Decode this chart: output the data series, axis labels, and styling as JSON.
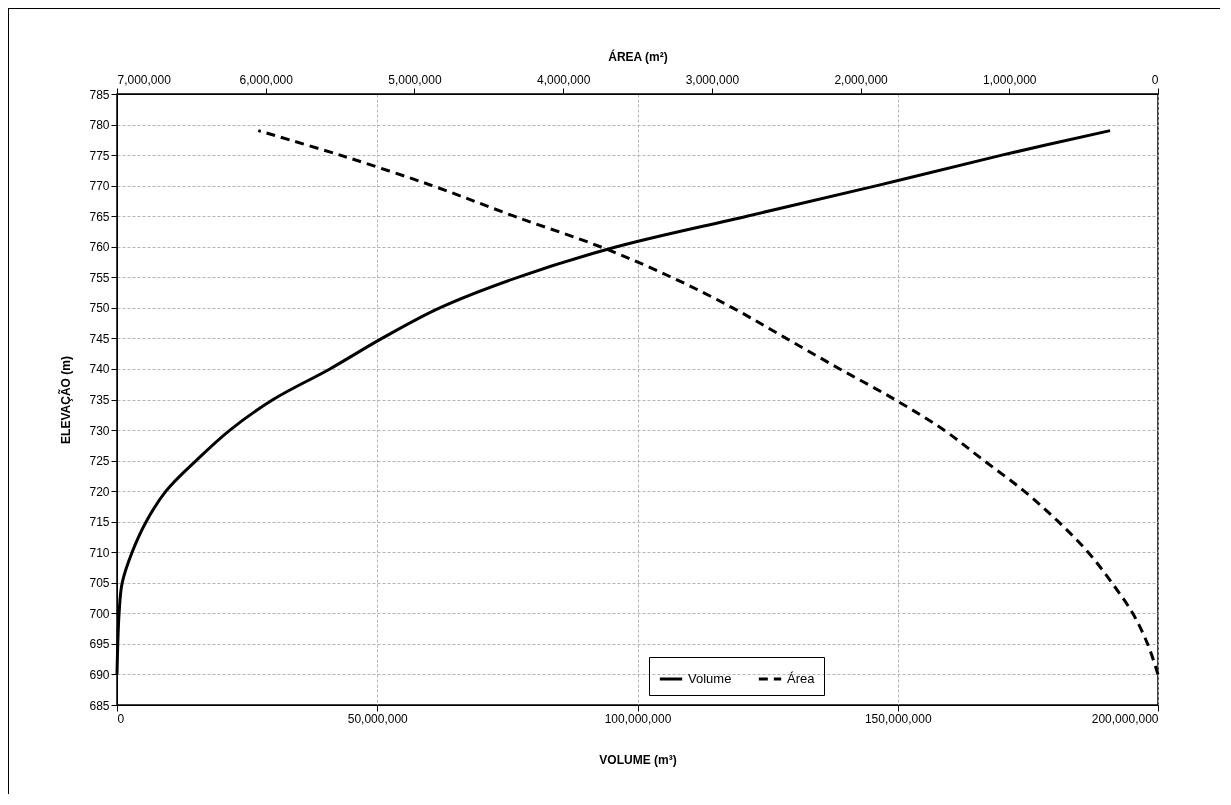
{
  "chart_data": {
    "type": "line",
    "xlabel": "VOLUME (m³)",
    "x2label": "ÁREA (m²)",
    "ylabel": "ELEVAÇÃO (m)",
    "xlim": [
      0,
      200000000
    ],
    "xticks": [
      0,
      {
        "value": 50000000,
        "label": "50,000,000"
      },
      {
        "value": 100000000,
        "label": "100,000,000"
      },
      {
        "value": 150000000,
        "label": "150,000,000"
      },
      {
        "value": 200000000,
        "label": "200,000,000"
      }
    ],
    "x2lim": [
      7000000,
      0
    ],
    "x2ticks": [
      {
        "value": 7000000,
        "label": "7,000,000"
      },
      {
        "value": 6000000,
        "label": "6,000,000"
      },
      {
        "value": 5000000,
        "label": "5,000,000"
      },
      {
        "value": 4000000,
        "label": "4,000,000"
      },
      {
        "value": 3000000,
        "label": "3,000,000"
      },
      {
        "value": 2000000,
        "label": "2,000,000"
      },
      {
        "value": 1000000,
        "label": "1,000,000"
      },
      0
    ],
    "ylim": [
      685,
      785
    ],
    "yticks": [
      685,
      690,
      695,
      700,
      705,
      710,
      715,
      720,
      725,
      730,
      735,
      740,
      745,
      750,
      755,
      760,
      765,
      770,
      775,
      780,
      785
    ],
    "grid": true,
    "legend": "bottom right",
    "series": [
      {
        "name": "Volume",
        "color": "#000000",
        "line_style": "solid",
        "x": [
          0,
          400000,
          1000000,
          2900000,
          5600000,
          9400000,
          15200000,
          21700000,
          30000000,
          40900000,
          50900000,
          62000000,
          77000000,
          96000000,
          121000000,
          146000000,
          170000000,
          190800000
        ],
        "values": [
          690,
          700,
          705,
          710,
          715,
          720,
          725,
          730,
          735,
          740,
          745,
          750,
          755,
          760,
          765,
          770,
          775,
          779
        ]
      },
      {
        "name": "Área",
        "color": "#000000",
        "line_style": "dashed",
        "axis": "x2",
        "x": [
          0,
          70000,
          170000,
          310000,
          470000,
          670000,
          900000,
          1170000,
          1440000,
          1770000,
          2140000,
          2500000,
          2860000,
          3270000,
          3750000,
          4330000,
          4880000,
          5500000,
          6050000
        ],
        "values": [
          690,
          695,
          700,
          705,
          710,
          715,
          720,
          725,
          730,
          735,
          740,
          745,
          750,
          755,
          760,
          765,
          770,
          775,
          779
        ]
      }
    ]
  }
}
